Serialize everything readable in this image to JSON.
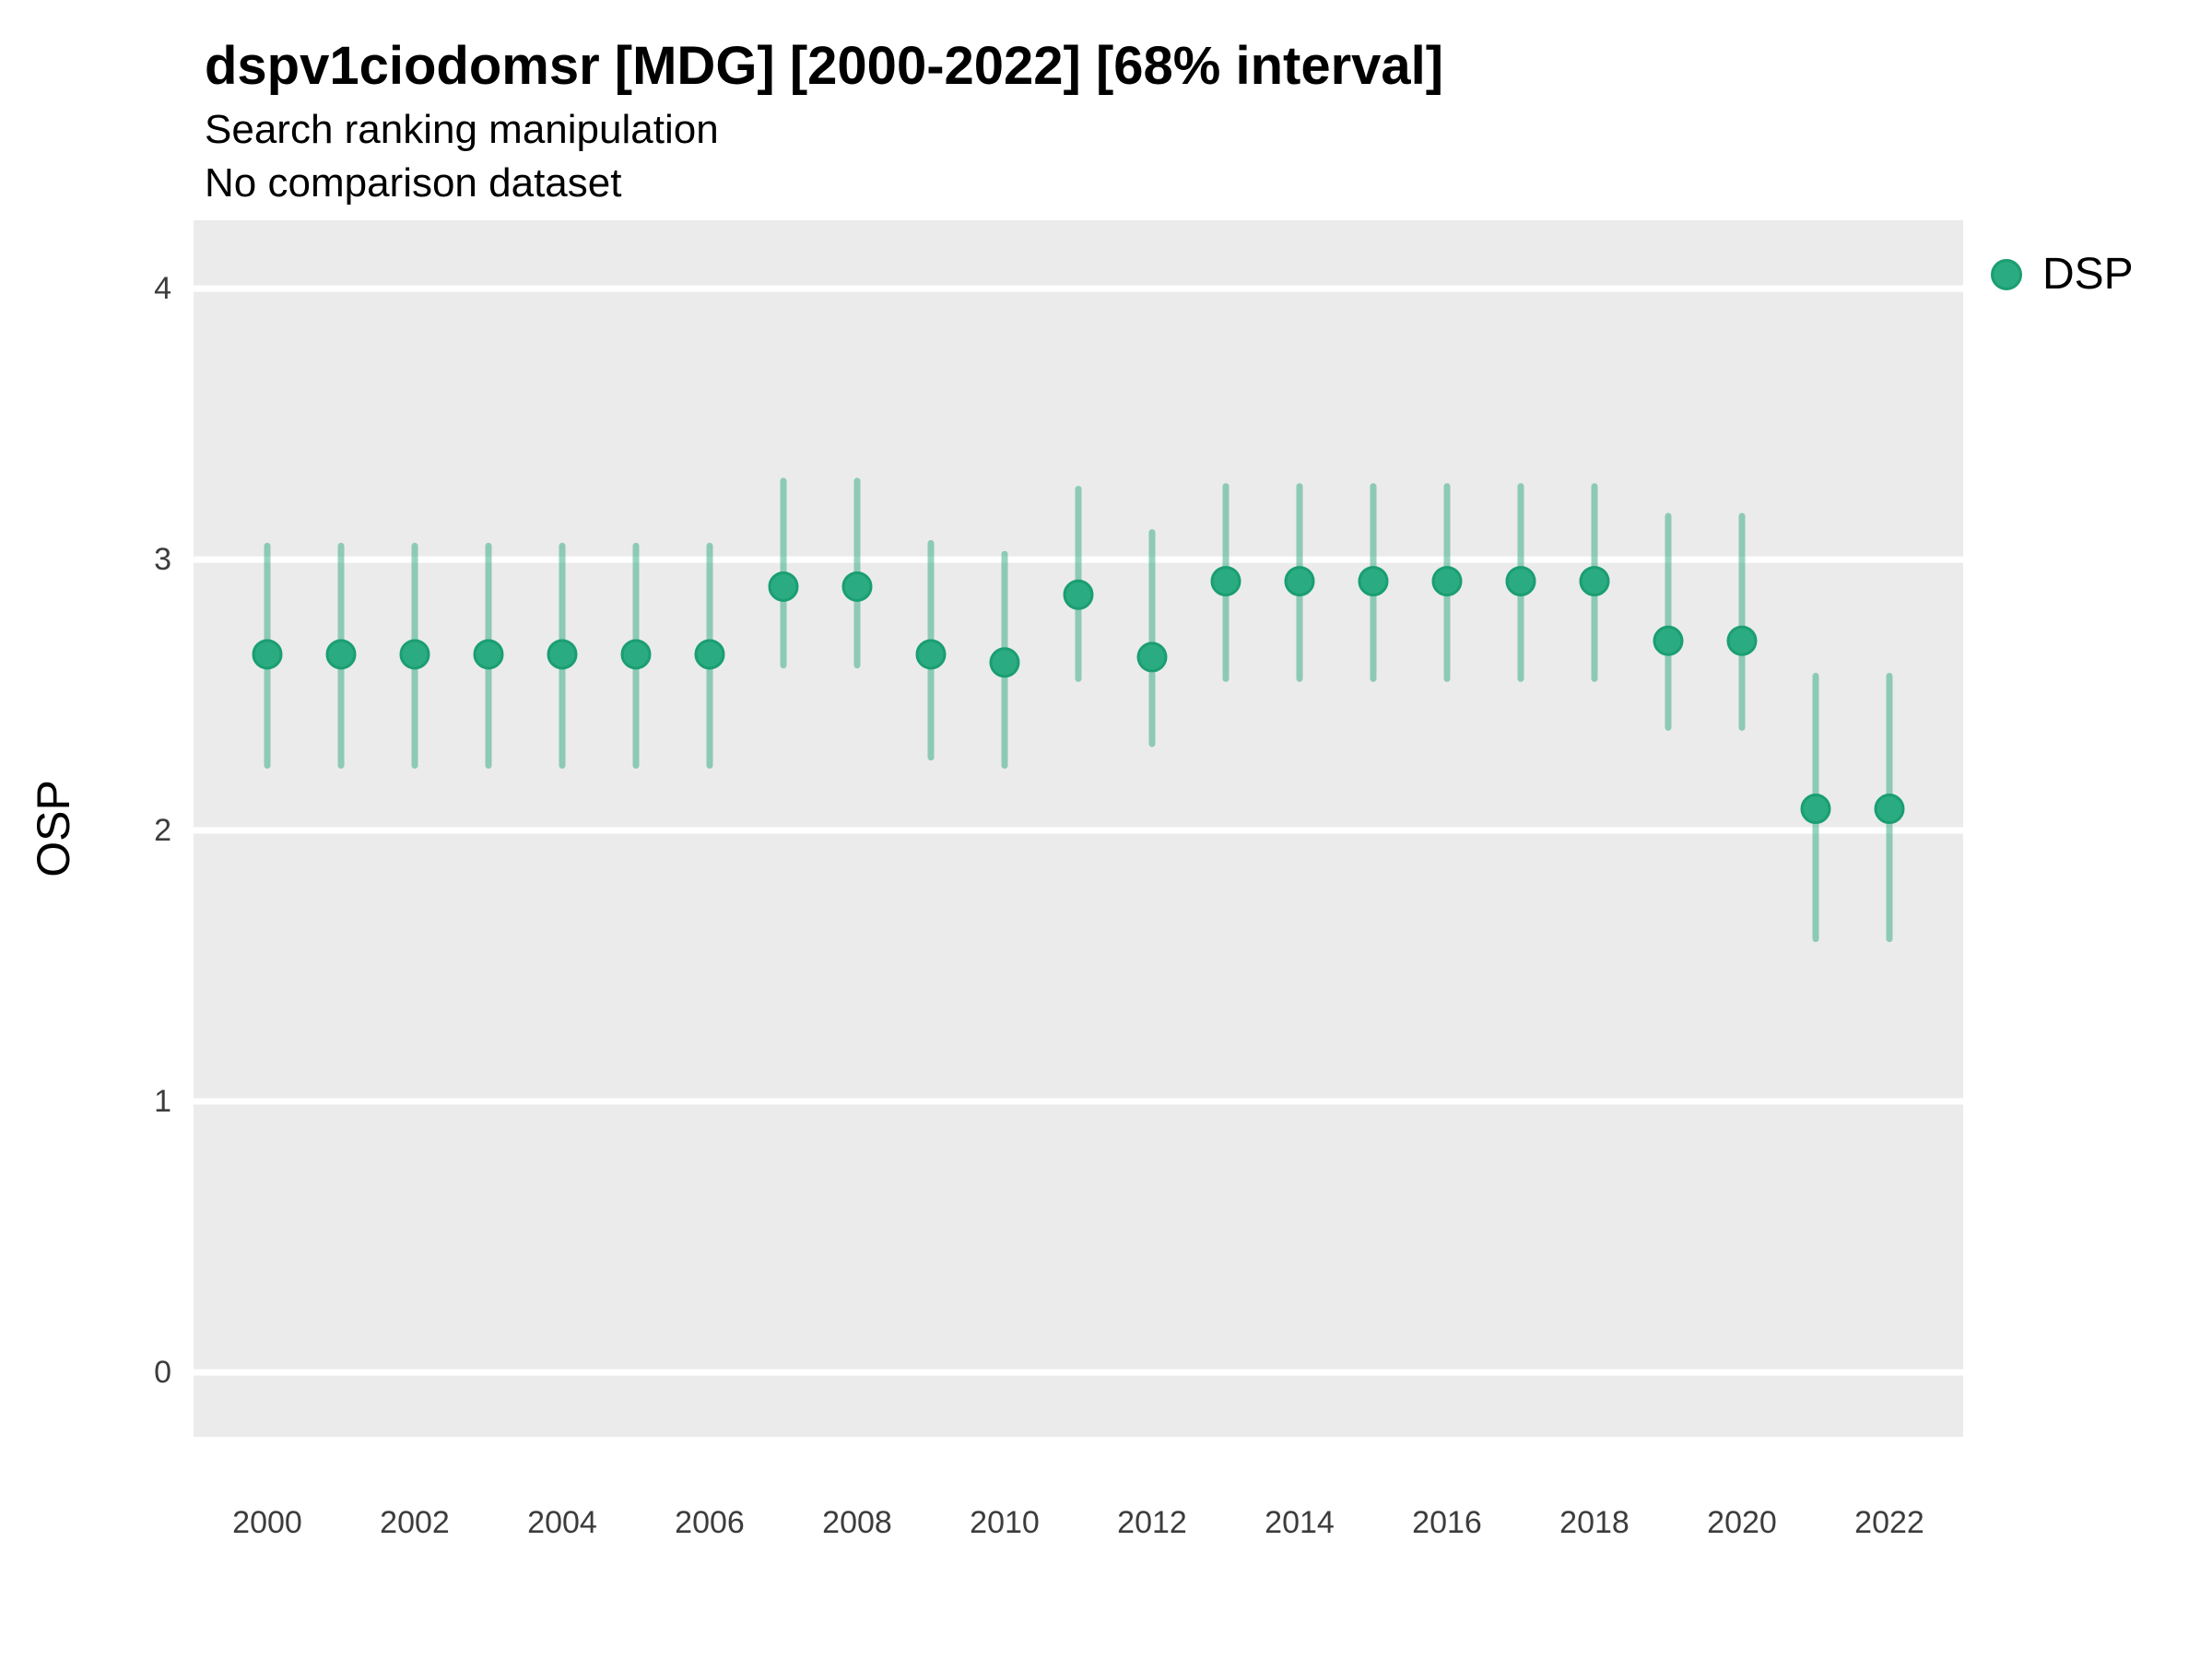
{
  "chart_data": {
    "type": "scatter",
    "subtype": "pointrange",
    "title": "dspv1ciodomsr [MDG] [2000-2022] [68% interval]",
    "subtitle": "Search ranking manipulation",
    "note": "No comparison dataset",
    "xlabel": "",
    "ylabel": "OSP",
    "xlim": [
      1999,
      2023
    ],
    "ylim": [
      -0.238,
      4.252
    ],
    "x_ticks": [
      2000,
      2002,
      2004,
      2006,
      2008,
      2010,
      2012,
      2014,
      2016,
      2018,
      2020,
      2022
    ],
    "y_ticks": [
      0,
      1,
      2,
      3,
      4
    ],
    "grid": "horizontal-major-only",
    "legend_position": "right",
    "series": [
      {
        "name": "DSP",
        "interval": "68%",
        "x": [
          2000,
          2001,
          2002,
          2003,
          2004,
          2005,
          2006,
          2007,
          2008,
          2009,
          2010,
          2011,
          2012,
          2013,
          2014,
          2015,
          2016,
          2017,
          2018,
          2019,
          2020,
          2021,
          2022
        ],
        "mean": [
          2.65,
          2.65,
          2.65,
          2.65,
          2.65,
          2.65,
          2.65,
          2.9,
          2.9,
          2.65,
          2.62,
          2.87,
          2.64,
          2.92,
          2.92,
          2.92,
          2.92,
          2.92,
          2.92,
          2.7,
          2.7,
          2.08,
          2.08
        ],
        "lower": [
          2.24,
          2.24,
          2.24,
          2.24,
          2.24,
          2.24,
          2.24,
          2.61,
          2.61,
          2.27,
          2.24,
          2.56,
          2.32,
          2.56,
          2.56,
          2.56,
          2.56,
          2.56,
          2.56,
          2.38,
          2.38,
          1.6,
          1.6
        ],
        "upper": [
          3.05,
          3.05,
          3.05,
          3.05,
          3.05,
          3.05,
          3.05,
          3.29,
          3.29,
          3.06,
          3.02,
          3.26,
          3.1,
          3.27,
          3.27,
          3.27,
          3.27,
          3.27,
          3.27,
          3.16,
          3.16,
          2.57,
          2.57
        ]
      }
    ],
    "colors": {
      "point_fill": "#2bab81",
      "point_border": "#1a9e72",
      "range_line": "#2daa80",
      "panel_bg": "#ebebeb",
      "gridline": "#ffffff",
      "tick_text": "#3c3c3c",
      "title_text": "#000000"
    }
  },
  "legend": {
    "items": [
      {
        "label": "DSP",
        "color": "#2bab81"
      }
    ]
  }
}
